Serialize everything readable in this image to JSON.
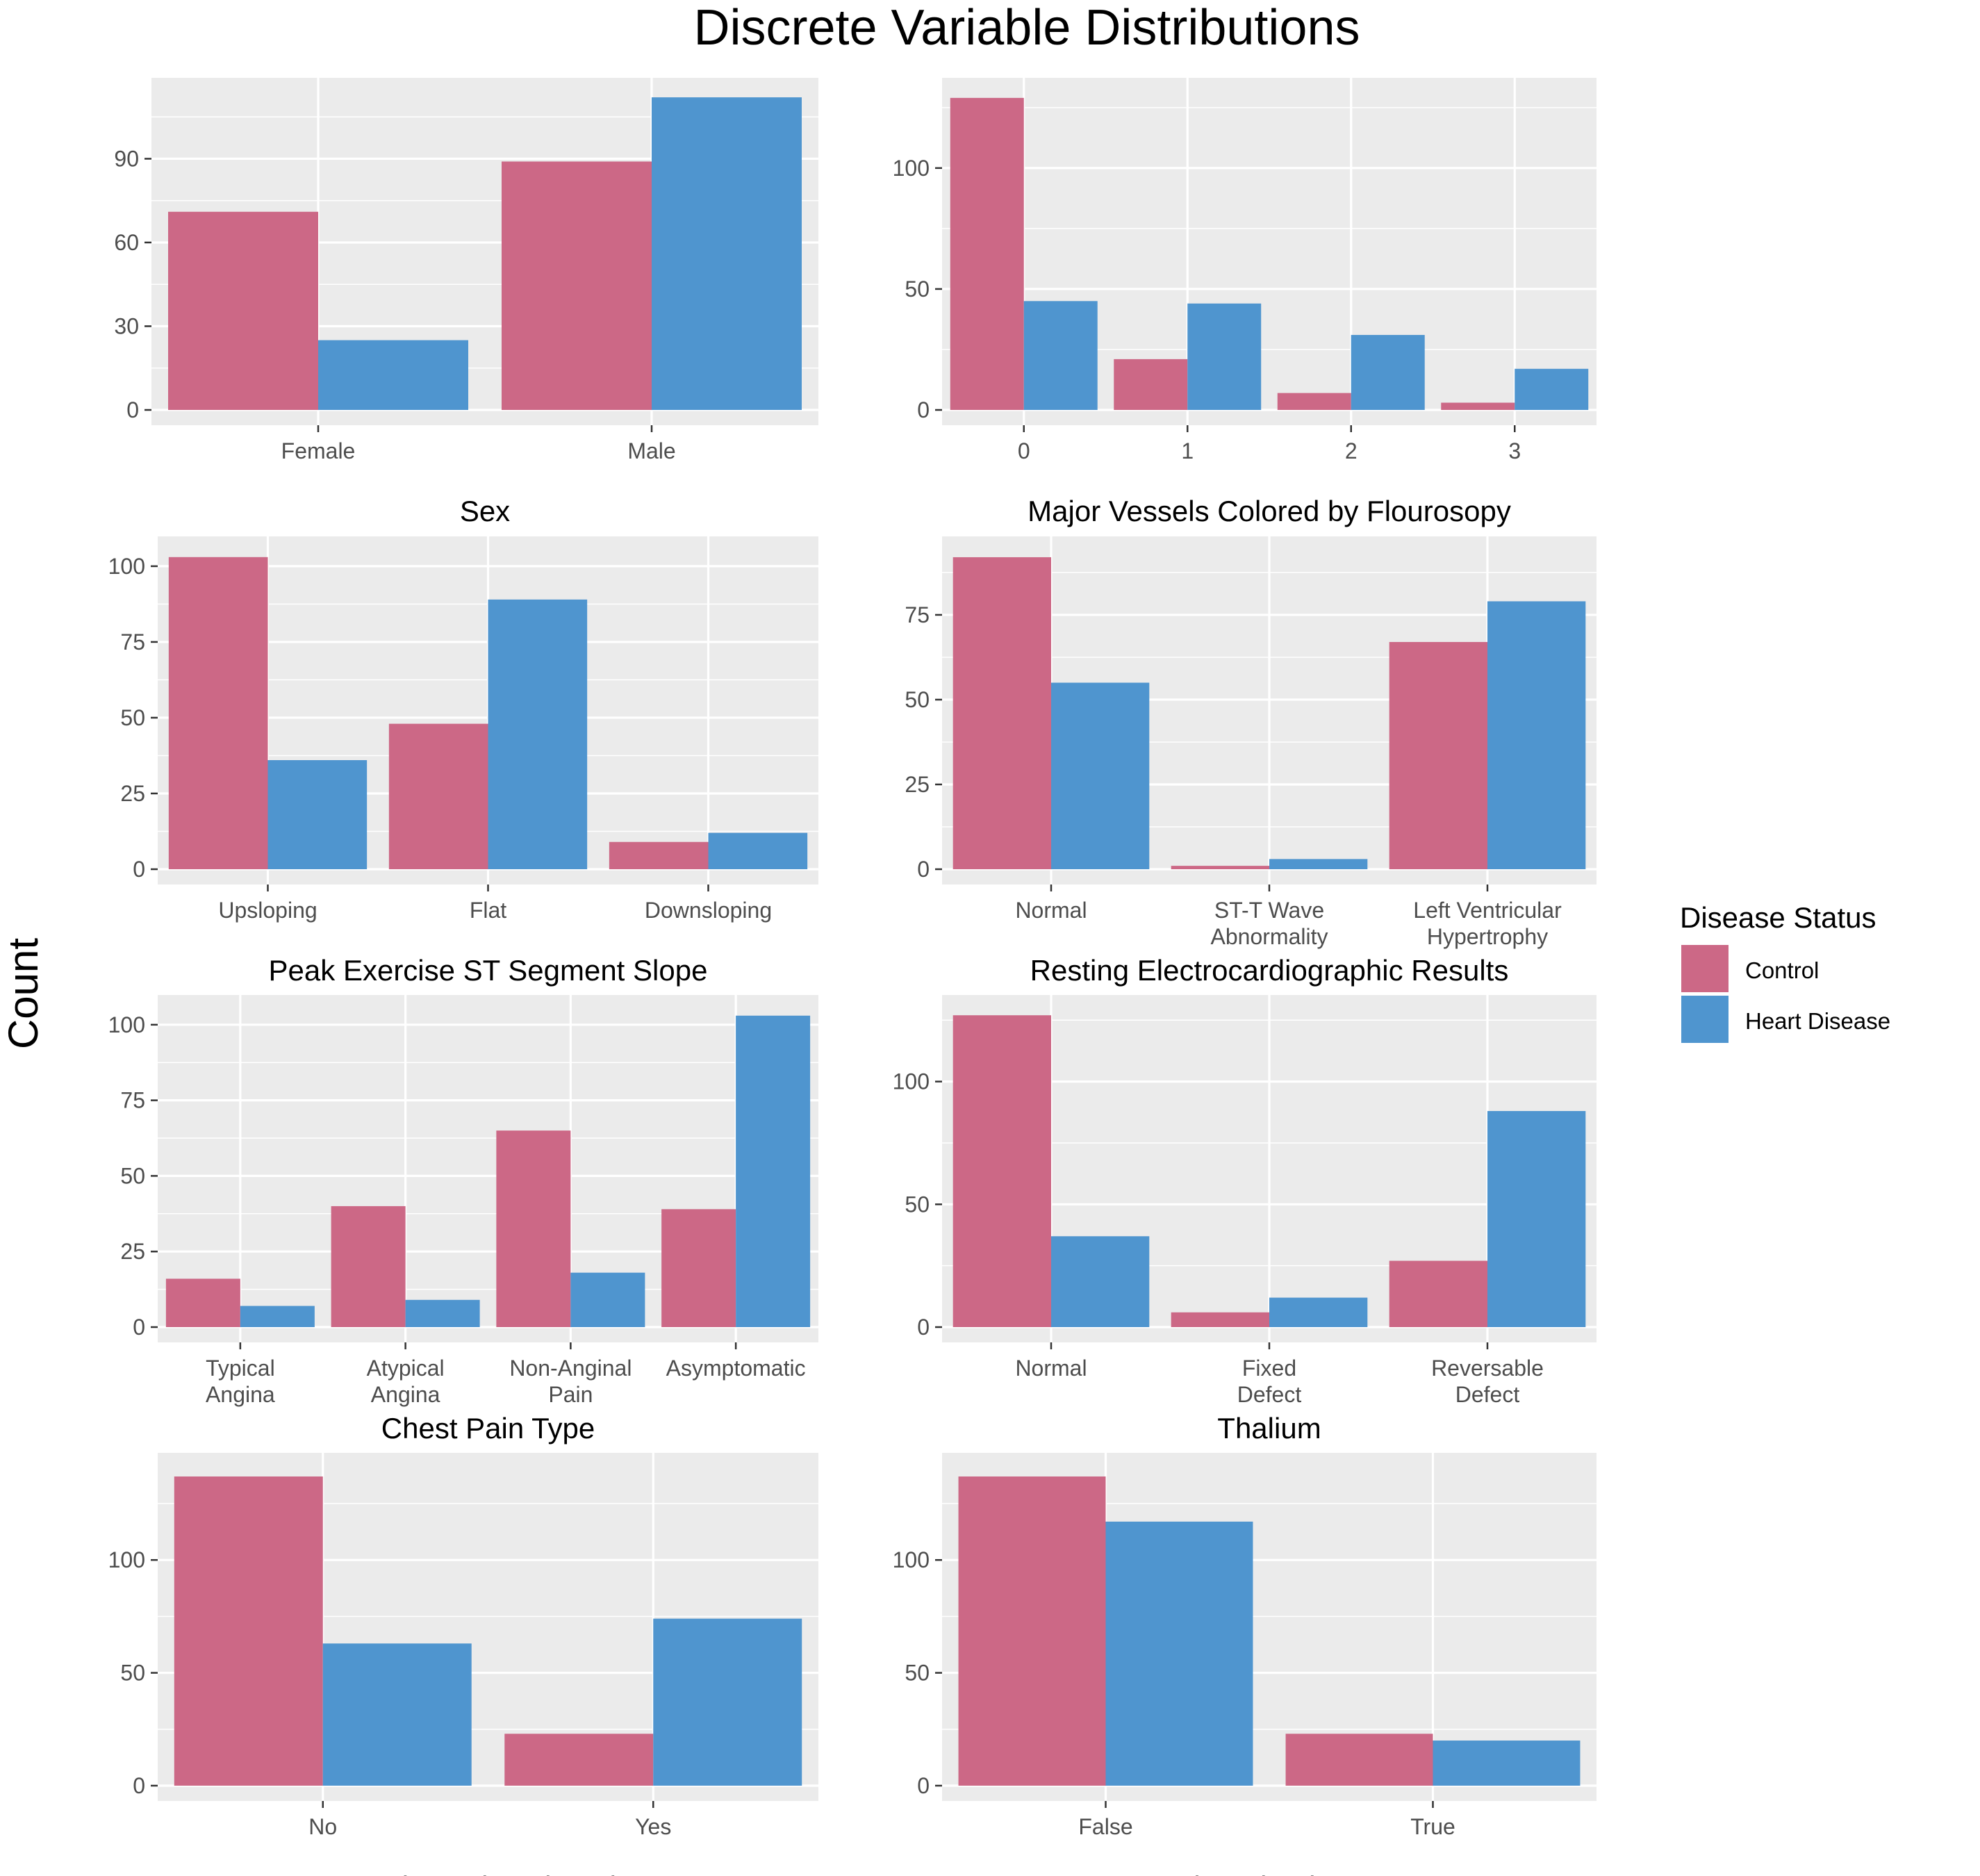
{
  "title": "Discrete Variable Distributions",
  "ylabel": "Count",
  "legend": {
    "title": "Disease Status",
    "placement": "right",
    "items": [
      {
        "label": "Control",
        "color": "#CC6886"
      },
      {
        "label": "Heart Disease",
        "color": "#4F95CF"
      }
    ]
  },
  "colors": {
    "panel_bg": "#EBEBEB",
    "grid": "#FFFFFF",
    "text": "#4D4D4D",
    "title": "#000000"
  },
  "chart_data": [
    {
      "type": "bar",
      "xlabel": "Sex",
      "categories": [
        "Female",
        "Male"
      ],
      "ylim": [
        0,
        117
      ],
      "yticks": [
        0,
        30,
        60,
        90
      ],
      "series": [
        {
          "name": "Control",
          "values": [
            71,
            89
          ]
        },
        {
          "name": "Heart Disease",
          "values": [
            25,
            112
          ]
        }
      ]
    },
    {
      "type": "bar",
      "xlabel": "Major Vessels Colored by Flourosopy",
      "categories": [
        "0",
        "1",
        "2",
        "3"
      ],
      "ylim": [
        0,
        135
      ],
      "yticks": [
        0,
        50,
        100
      ],
      "series": [
        {
          "name": "Control",
          "values": [
            129,
            21,
            7,
            3
          ]
        },
        {
          "name": "Heart Disease",
          "values": [
            45,
            44,
            31,
            17
          ]
        }
      ]
    },
    {
      "type": "bar",
      "xlabel": "Peak Exercise ST Segment Slope",
      "categories": [
        "Upsloping",
        "Flat",
        "Downsloping"
      ],
      "ylim": [
        0,
        108
      ],
      "yticks": [
        0,
        25,
        50,
        75,
        100
      ],
      "series": [
        {
          "name": "Control",
          "values": [
            103,
            48,
            9
          ]
        },
        {
          "name": "Heart Disease",
          "values": [
            36,
            89,
            12
          ]
        }
      ]
    },
    {
      "type": "bar",
      "xlabel": "Resting Electrocardiographic Results",
      "categories": [
        "Normal",
        "ST-T Wave\nAbnormality",
        "Left Ventricular\nHypertrophy"
      ],
      "ylim": [
        0,
        96.5
      ],
      "yticks": [
        0,
        25,
        50,
        75
      ],
      "series": [
        {
          "name": "Control",
          "values": [
            92,
            1,
            67
          ]
        },
        {
          "name": "Heart Disease",
          "values": [
            55,
            3,
            79
          ]
        }
      ]
    },
    {
      "type": "bar",
      "xlabel": "Chest Pain Type",
      "categories": [
        "Typical\nAngina",
        "Atypical\nAngina",
        "Non-Anginal\nPain",
        "Asymptomatic"
      ],
      "ylim": [
        0,
        108
      ],
      "yticks": [
        0,
        25,
        50,
        75,
        100
      ],
      "series": [
        {
          "name": "Control",
          "values": [
            16,
            40,
            65,
            39
          ]
        },
        {
          "name": "Heart Disease",
          "values": [
            7,
            9,
            18,
            103
          ]
        }
      ]
    },
    {
      "type": "bar",
      "xlabel": "Thalium",
      "categories": [
        "Normal",
        "Fixed\nDefect",
        "Reversable\nDefect"
      ],
      "ylim": [
        0,
        133
      ],
      "yticks": [
        0,
        50,
        100
      ],
      "series": [
        {
          "name": "Control",
          "values": [
            127,
            6,
            27
          ]
        },
        {
          "name": "Heart Disease",
          "values": [
            37,
            12,
            88
          ]
        }
      ]
    },
    {
      "type": "bar",
      "xlabel": "Exercise Induced Angina",
      "categories": [
        "No",
        "Yes"
      ],
      "ylim": [
        0,
        145
      ],
      "yticks": [
        0,
        50,
        100
      ],
      "series": [
        {
          "name": "Control",
          "values": [
            137,
            23
          ]
        },
        {
          "name": "Heart Disease",
          "values": [
            63,
            74
          ]
        }
      ]
    },
    {
      "type": "bar",
      "xlabel": "Fasting Blood Sugar",
      "categories": [
        "False",
        "True"
      ],
      "ylim": [
        0,
        145
      ],
      "yticks": [
        0,
        50,
        100
      ],
      "series": [
        {
          "name": "Control",
          "values": [
            137,
            23
          ]
        },
        {
          "name": "Heart Disease",
          "values": [
            117,
            20
          ]
        }
      ]
    }
  ]
}
